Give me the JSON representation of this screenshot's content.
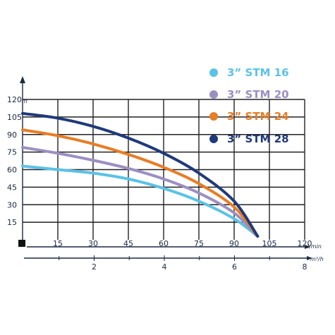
{
  "chart_data": {
    "type": "line",
    "y_unit": "m",
    "x_unit": "l/min",
    "x2_unit": "m³/h",
    "x_ticks": [
      "15",
      "30",
      "45",
      "60",
      "75",
      "90",
      "105",
      "120"
    ],
    "y_ticks": [
      "15",
      "30",
      "45",
      "60",
      "75",
      "90",
      "105",
      "120"
    ],
    "x2_ticks": [
      "2",
      "4",
      "6",
      "8"
    ],
    "xlim": [
      0,
      120
    ],
    "ylim": [
      0,
      120
    ],
    "x2lim": [
      0,
      8
    ],
    "grid": true,
    "legend_position": "top-right",
    "series": [
      {
        "name": "3” STM 16",
        "color": "#5bc2e7",
        "x": [
          0,
          15,
          30,
          45,
          60,
          75,
          90,
          100
        ],
        "y": [
          63,
          60,
          57,
          52,
          44,
          33,
          18,
          3
        ]
      },
      {
        "name": "3” STM 20",
        "color": "#9b8fc2",
        "x": [
          0,
          15,
          30,
          45,
          60,
          75,
          90,
          100
        ],
        "y": [
          79,
          74,
          68,
          61,
          52,
          40,
          23,
          3
        ]
      },
      {
        "name": "3” STM 24",
        "color": "#e87d24",
        "x": [
          0,
          15,
          30,
          45,
          60,
          75,
          90,
          100
        ],
        "y": [
          94,
          89,
          82,
          73,
          62,
          48,
          28,
          3
        ]
      },
      {
        "name": "3” STM 28",
        "color": "#1f3a7a",
        "x": [
          0,
          15,
          30,
          45,
          60,
          75,
          90,
          100
        ],
        "y": [
          108,
          104,
          97,
          87,
          74,
          57,
          33,
          3
        ]
      }
    ]
  }
}
